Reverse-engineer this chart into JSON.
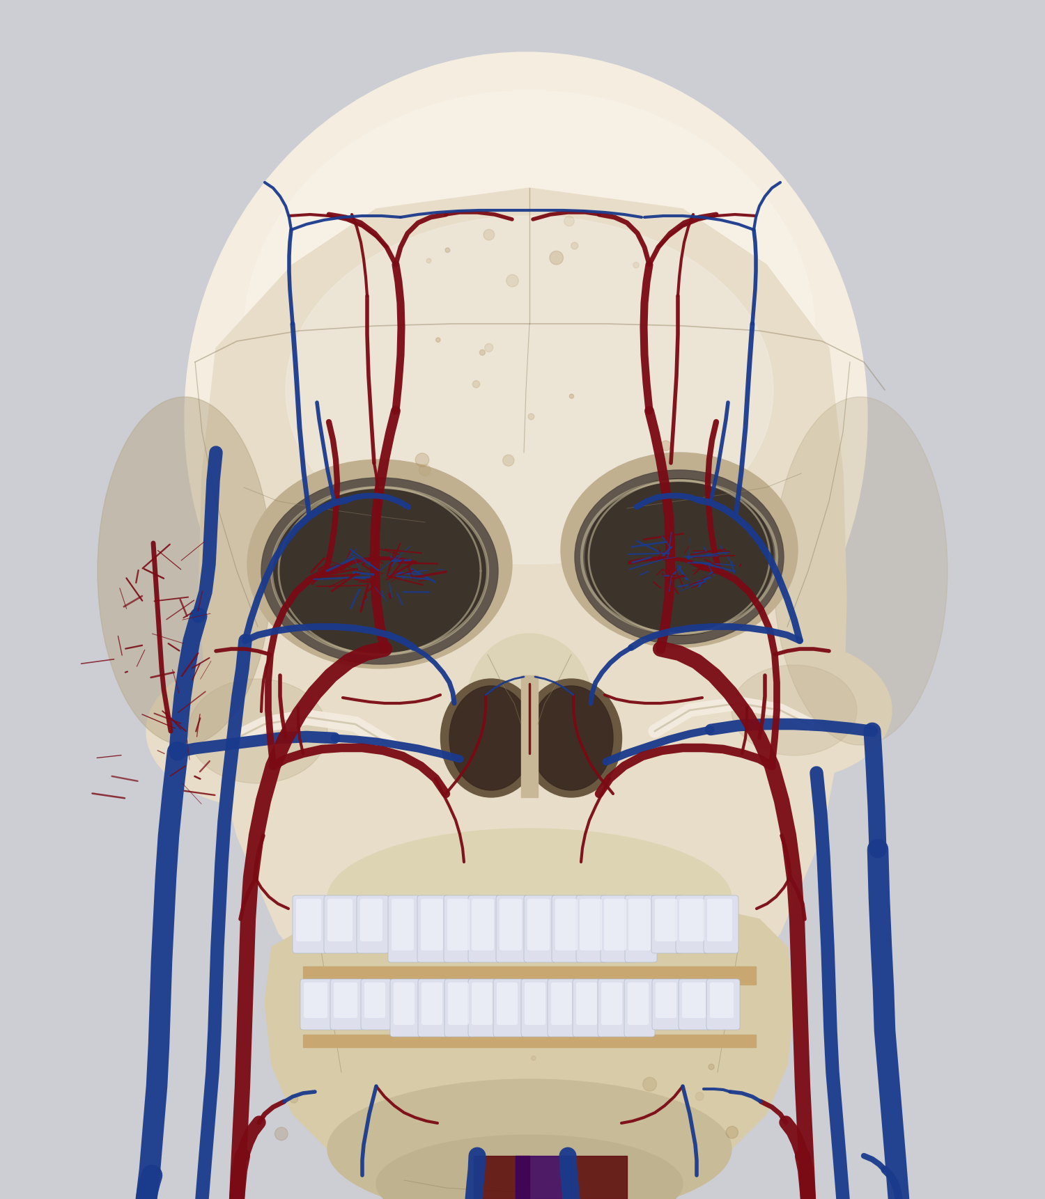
{
  "background_color": "#ccced4",
  "skull_color": "#ede5d0",
  "skull_highlight": "#f5f0e8",
  "skull_shadow": "#c8b898",
  "skull_dark": "#a89878",
  "artery_color": "#7a0a14",
  "vein_color": "#1a3a8c",
  "teeth_color": "#e8e8f2",
  "teeth_shadow": "#d0d0dc",
  "figsize": [
    15.0,
    17.22
  ],
  "dpi": 100
}
